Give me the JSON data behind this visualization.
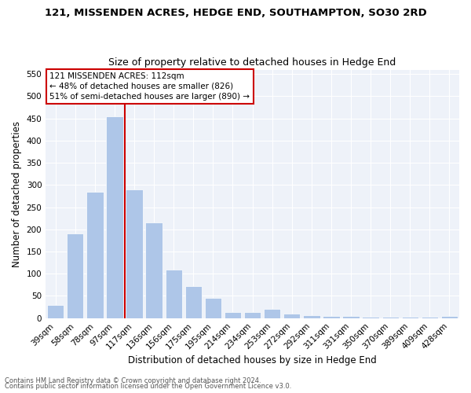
{
  "title": "121, MISSENDEN ACRES, HEDGE END, SOUTHAMPTON, SO30 2RD",
  "subtitle": "Size of property relative to detached houses in Hedge End",
  "xlabel": "Distribution of detached houses by size in Hedge End",
  "ylabel": "Number of detached properties",
  "categories": [
    "39sqm",
    "58sqm",
    "78sqm",
    "97sqm",
    "117sqm",
    "136sqm",
    "156sqm",
    "175sqm",
    "195sqm",
    "214sqm",
    "234sqm",
    "253sqm",
    "272sqm",
    "292sqm",
    "311sqm",
    "331sqm",
    "350sqm",
    "370sqm",
    "389sqm",
    "409sqm",
    "428sqm"
  ],
  "values": [
    30,
    190,
    285,
    455,
    290,
    215,
    110,
    72,
    46,
    14,
    13,
    20,
    10,
    7,
    5,
    4,
    3,
    3,
    3,
    3,
    5
  ],
  "bar_color": "#aec6e8",
  "vline_color": "#cc0000",
  "vline_position": 3.5,
  "annotation_title": "121 MISSENDEN ACRES: 112sqm",
  "annotation_line1": "← 48% of detached houses are smaller (826)",
  "annotation_line2": "51% of semi-detached houses are larger (890) →",
  "annotation_box_color": "#cc0000",
  "ylim": [
    0,
    560
  ],
  "yticks": [
    0,
    50,
    100,
    150,
    200,
    250,
    300,
    350,
    400,
    450,
    500,
    550
  ],
  "footer1": "Contains HM Land Registry data © Crown copyright and database right 2024.",
  "footer2": "Contains public sector information licensed under the Open Government Licence v3.0.",
  "bg_color": "#eef2f9",
  "title_fontsize": 9.5,
  "subtitle_fontsize": 9,
  "tick_fontsize": 7.5,
  "ylabel_fontsize": 8.5,
  "xlabel_fontsize": 8.5,
  "annotation_fontsize": 7.5,
  "footer_fontsize": 6
}
